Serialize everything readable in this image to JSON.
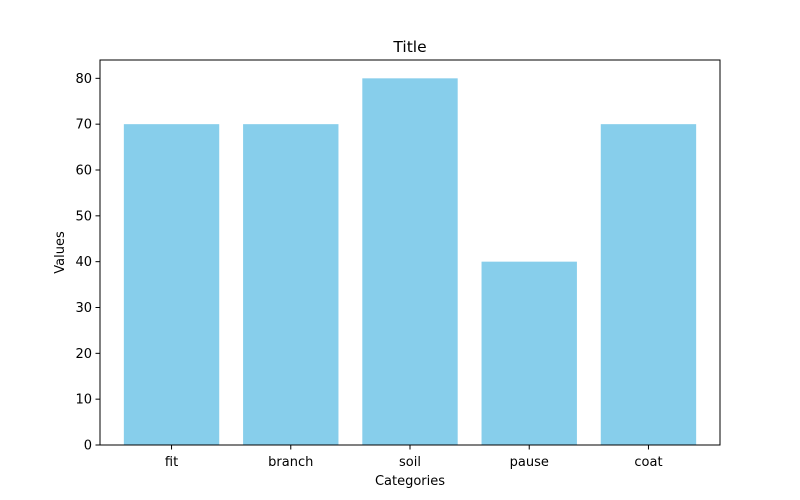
{
  "chart_data": {
    "type": "bar",
    "title": "Title",
    "xlabel": "Categories",
    "ylabel": "Values",
    "categories": [
      "fit",
      "branch",
      "soil",
      "pause",
      "coat"
    ],
    "values": [
      70,
      70,
      80,
      40,
      70
    ],
    "ylim": [
      0,
      84
    ],
    "yticks": [
      0,
      10,
      20,
      30,
      40,
      50,
      60,
      70,
      80
    ],
    "grid": false,
    "bar_color": "#87ceeb"
  }
}
